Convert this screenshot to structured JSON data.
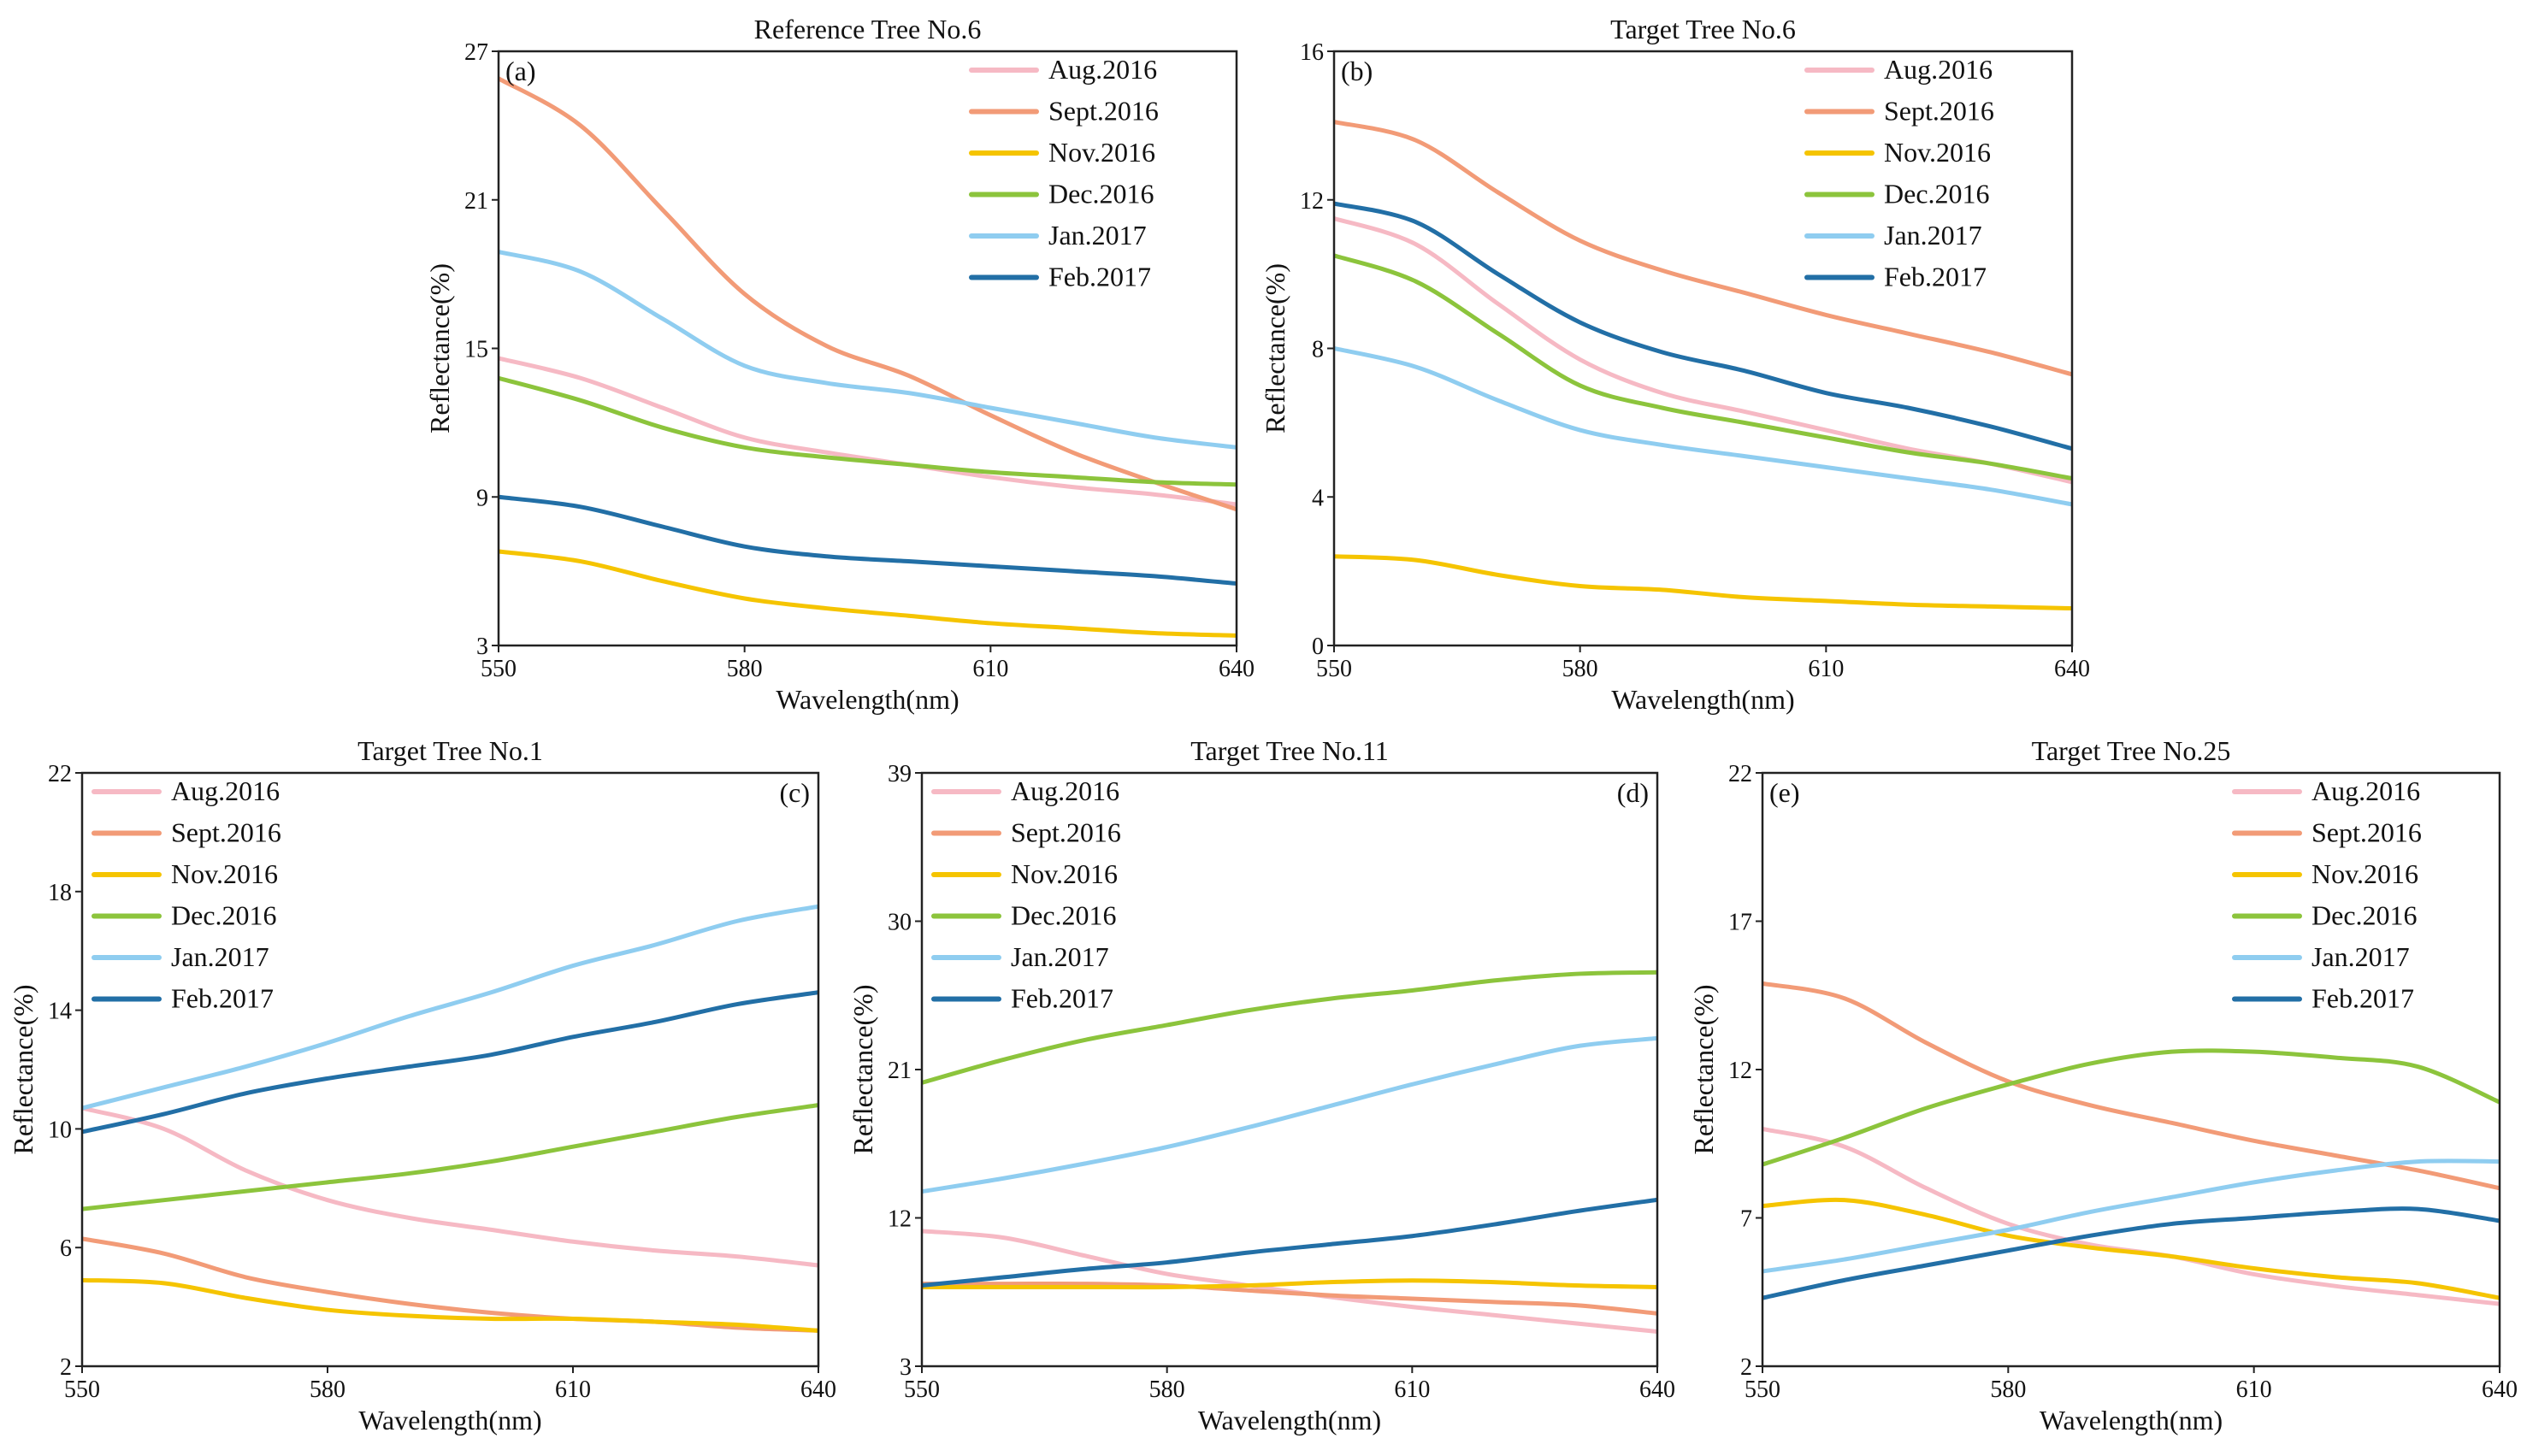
{
  "colors": {
    "Aug.2016": "#f6b9c4",
    "Sept.2016": "#f29b77",
    "Nov.2016": "#f5c400",
    "Dec.2016": "#8cc43c",
    "Jan.2017": "#8fcdf0",
    "Feb.2017": "#226fa6"
  },
  "chart_data": [
    {
      "id": "a",
      "type": "line",
      "title": "Reference Tree No.6",
      "panel_label": "(a)",
      "xlabel": "Wavelength(nm)",
      "ylabel": "Reflectance(%)",
      "xlim": [
        550,
        640
      ],
      "ylim": [
        3,
        27
      ],
      "xticks": [
        "550",
        "580",
        "610",
        "640"
      ],
      "yticks": [
        "3",
        "9",
        "15",
        "21",
        "27"
      ],
      "legend": "top-right",
      "x": [
        550,
        560,
        570,
        580,
        590,
        600,
        610,
        620,
        630,
        640
      ],
      "series": [
        {
          "name": "Aug.2016",
          "values": [
            14.6,
            13.8,
            12.6,
            11.4,
            10.8,
            10.3,
            9.8,
            9.4,
            9.1,
            8.7
          ]
        },
        {
          "name": "Sept.2016",
          "values": [
            25.9,
            24.0,
            20.6,
            17.2,
            15.1,
            13.9,
            12.3,
            10.8,
            9.6,
            8.5
          ]
        },
        {
          "name": "Nov.2016",
          "values": [
            6.8,
            6.4,
            5.6,
            4.9,
            4.5,
            4.2,
            3.9,
            3.7,
            3.5,
            3.4
          ]
        },
        {
          "name": "Dec.2016",
          "values": [
            13.8,
            12.9,
            11.8,
            11.0,
            10.6,
            10.3,
            10.0,
            9.8,
            9.6,
            9.5
          ]
        },
        {
          "name": "Jan.2017",
          "values": [
            18.9,
            18.1,
            16.2,
            14.3,
            13.6,
            13.2,
            12.6,
            12.0,
            11.4,
            11.0
          ]
        },
        {
          "name": "Feb.2017",
          "values": [
            9.0,
            8.6,
            7.8,
            7.0,
            6.6,
            6.4,
            6.2,
            6.0,
            5.8,
            5.5
          ]
        }
      ]
    },
    {
      "id": "b",
      "type": "line",
      "title": "Target Tree No.6",
      "panel_label": "(b)",
      "xlabel": "Wavelength(nm)",
      "ylabel": "Reflectance(%)",
      "xlim": [
        550,
        640
      ],
      "ylim": [
        0,
        16
      ],
      "xticks": [
        "550",
        "580",
        "610",
        "640"
      ],
      "yticks": [
        "0",
        "4",
        "8",
        "12",
        "16"
      ],
      "legend": "top-right",
      "x": [
        550,
        560,
        570,
        580,
        590,
        600,
        610,
        620,
        630,
        640
      ],
      "series": [
        {
          "name": "Aug.2016",
          "values": [
            11.5,
            10.8,
            9.2,
            7.7,
            6.8,
            6.3,
            5.8,
            5.3,
            4.9,
            4.4
          ]
        },
        {
          "name": "Sept.2016",
          "values": [
            14.1,
            13.6,
            12.2,
            10.9,
            10.1,
            9.5,
            8.9,
            8.4,
            7.9,
            7.3
          ]
        },
        {
          "name": "Nov.2016",
          "values": [
            2.4,
            2.3,
            1.9,
            1.6,
            1.5,
            1.3,
            1.2,
            1.1,
            1.05,
            1.0
          ]
        },
        {
          "name": "Dec.2016",
          "values": [
            10.5,
            9.8,
            8.4,
            7.0,
            6.4,
            6.0,
            5.6,
            5.2,
            4.9,
            4.5
          ]
        },
        {
          "name": "Jan.2017",
          "values": [
            8.0,
            7.5,
            6.6,
            5.8,
            5.4,
            5.1,
            4.8,
            4.5,
            4.2,
            3.8
          ]
        },
        {
          "name": "Feb.2017",
          "values": [
            11.9,
            11.4,
            10.0,
            8.7,
            7.9,
            7.4,
            6.8,
            6.4,
            5.9,
            5.3
          ]
        }
      ]
    },
    {
      "id": "c",
      "type": "line",
      "title": "Target Tree No.1",
      "panel_label": "(c)",
      "xlabel": "Wavelength(nm)",
      "ylabel": "Reflectance(%)",
      "xlim": [
        550,
        640
      ],
      "ylim": [
        2,
        22
      ],
      "xticks": [
        "550",
        "580",
        "610",
        "640"
      ],
      "yticks": [
        "2",
        "6",
        "10",
        "14",
        "18",
        "22"
      ],
      "legend": "top-left",
      "x": [
        550,
        560,
        570,
        580,
        590,
        600,
        610,
        620,
        630,
        640
      ],
      "series": [
        {
          "name": "Aug.2016",
          "values": [
            10.7,
            10.0,
            8.6,
            7.6,
            7.0,
            6.6,
            6.2,
            5.9,
            5.7,
            5.4
          ]
        },
        {
          "name": "Sept.2016",
          "values": [
            6.3,
            5.8,
            5.0,
            4.5,
            4.1,
            3.8,
            3.6,
            3.5,
            3.3,
            3.2
          ]
        },
        {
          "name": "Nov.2016",
          "values": [
            4.9,
            4.8,
            4.3,
            3.9,
            3.7,
            3.6,
            3.6,
            3.5,
            3.4,
            3.2
          ]
        },
        {
          "name": "Dec.2016",
          "values": [
            7.3,
            7.6,
            7.9,
            8.2,
            8.5,
            8.9,
            9.4,
            9.9,
            10.4,
            10.8
          ]
        },
        {
          "name": "Jan.2017",
          "values": [
            10.7,
            11.4,
            12.1,
            12.9,
            13.8,
            14.6,
            15.5,
            16.2,
            17.0,
            17.5
          ]
        },
        {
          "name": "Feb.2017",
          "values": [
            9.9,
            10.5,
            11.2,
            11.7,
            12.1,
            12.5,
            13.1,
            13.6,
            14.2,
            14.6
          ]
        }
      ]
    },
    {
      "id": "d",
      "type": "line",
      "title": "Target Tree No.11",
      "panel_label": "(d)",
      "xlabel": "Wavelength(nm)",
      "ylabel": "Reflectance(%)",
      "xlim": [
        550,
        640
      ],
      "ylim": [
        3,
        39
      ],
      "xticks": [
        "550",
        "580",
        "610",
        "640"
      ],
      "yticks": [
        "3",
        "12",
        "21",
        "30",
        "39"
      ],
      "legend": "top-left",
      "x": [
        550,
        560,
        570,
        580,
        590,
        600,
        610,
        620,
        630,
        640
      ],
      "series": [
        {
          "name": "Aug.2016",
          "values": [
            11.2,
            10.8,
            9.7,
            8.6,
            7.9,
            7.2,
            6.6,
            6.1,
            5.6,
            5.1
          ]
        },
        {
          "name": "Sept.2016",
          "values": [
            8.0,
            8.0,
            8.0,
            7.9,
            7.6,
            7.3,
            7.1,
            6.9,
            6.7,
            6.2
          ]
        },
        {
          "name": "Nov.2016",
          "values": [
            7.8,
            7.8,
            7.8,
            7.8,
            7.9,
            8.1,
            8.2,
            8.1,
            7.9,
            7.8
          ]
        },
        {
          "name": "Dec.2016",
          "values": [
            20.2,
            21.6,
            22.8,
            23.7,
            24.6,
            25.3,
            25.8,
            26.4,
            26.8,
            26.9
          ]
        },
        {
          "name": "Jan.2017",
          "values": [
            13.6,
            14.4,
            15.3,
            16.3,
            17.5,
            18.8,
            20.1,
            21.3,
            22.4,
            22.9
          ]
        },
        {
          "name": "Feb.2017",
          "values": [
            7.9,
            8.4,
            8.9,
            9.3,
            9.9,
            10.4,
            10.9,
            11.6,
            12.4,
            13.1
          ]
        }
      ]
    },
    {
      "id": "e",
      "type": "line",
      "title": "Target Tree No.25",
      "panel_label": "(e)",
      "xlabel": "Wavelength(nm)",
      "ylabel": "Reflectance(%)",
      "xlim": [
        550,
        640
      ],
      "ylim": [
        2,
        22
      ],
      "xticks": [
        "550",
        "580",
        "610",
        "640"
      ],
      "yticks": [
        "2",
        "7",
        "12",
        "17",
        "22"
      ],
      "legend": "top-right",
      "x": [
        550,
        560,
        570,
        580,
        590,
        600,
        610,
        620,
        630,
        640
      ],
      "series": [
        {
          "name": "Aug.2016",
          "values": [
            10.0,
            9.4,
            8.0,
            6.8,
            6.1,
            5.7,
            5.1,
            4.7,
            4.4,
            4.1
          ]
        },
        {
          "name": "Sept.2016",
          "values": [
            14.9,
            14.4,
            12.9,
            11.6,
            10.8,
            10.2,
            9.6,
            9.1,
            8.6,
            8.0
          ]
        },
        {
          "name": "Nov.2016",
          "values": [
            7.4,
            7.6,
            7.1,
            6.4,
            6.0,
            5.7,
            5.3,
            5.0,
            4.8,
            4.3
          ]
        },
        {
          "name": "Dec.2016",
          "values": [
            8.8,
            9.7,
            10.7,
            11.5,
            12.2,
            12.6,
            12.6,
            12.4,
            12.1,
            10.9
          ]
        },
        {
          "name": "Jan.2017",
          "values": [
            5.2,
            5.6,
            6.1,
            6.6,
            7.2,
            7.7,
            8.2,
            8.6,
            8.9,
            8.9
          ]
        },
        {
          "name": "Feb.2017",
          "values": [
            4.3,
            4.9,
            5.4,
            5.9,
            6.4,
            6.8,
            7.0,
            7.2,
            7.3,
            6.9
          ]
        }
      ]
    }
  ]
}
